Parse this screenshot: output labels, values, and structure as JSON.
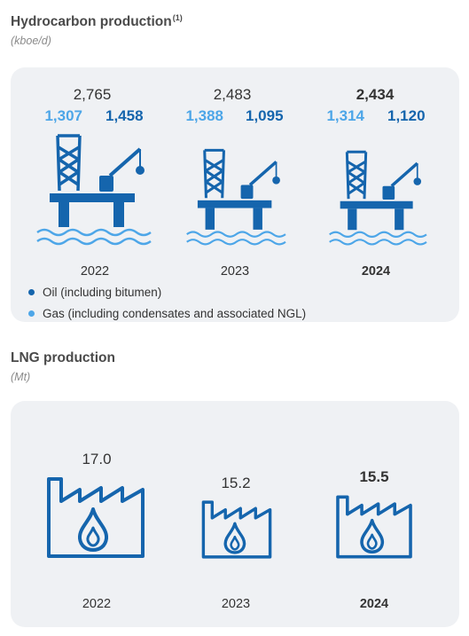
{
  "hydrocarbon": {
    "title": "Hydrocarbon production",
    "footnote": "(1)",
    "unit": "(kboe/d)",
    "legend": {
      "oil": "Oil (including bitumen)",
      "gas": "Gas (including condensates and associated NGL)"
    }
  },
  "lng": {
    "title": "LNG production",
    "unit": "(Mt)"
  },
  "colors": {
    "oil": "#1565ad",
    "gas": "#4da6e8",
    "icon": "#1565ad",
    "panel": "#eff1f4"
  },
  "chart_data": [
    {
      "type": "bar",
      "title": "Hydrocarbon production",
      "categories": [
        "2022",
        "2023",
        "2024"
      ],
      "totals": [
        "2,765",
        "2,483",
        "2,434"
      ],
      "series": [
        {
          "name": "Gas (including condensates and associated NGL)",
          "values": [
            "1,307",
            "1,388",
            "1,314"
          ]
        },
        {
          "name": "Oil (including bitumen)",
          "values": [
            "1,458",
            "1,095",
            "1,120"
          ]
        }
      ],
      "icon": "offshore-platform-icon"
    },
    {
      "type": "bar",
      "title": "LNG production",
      "categories": [
        "2022",
        "2023",
        "2024"
      ],
      "values": [
        17.0,
        15.2,
        15.5
      ],
      "labels": [
        "17.0",
        "15.2",
        "15.5"
      ],
      "icon": "factory-flame-icon"
    }
  ]
}
